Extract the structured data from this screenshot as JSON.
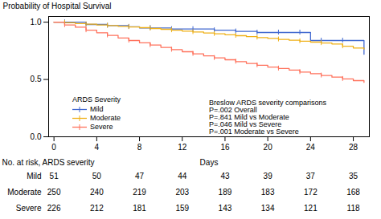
{
  "chart_data": {
    "type": "step",
    "ylabel": "Probability of Hospital Survival",
    "xlabel": "Days",
    "x": [
      0,
      1,
      2,
      3,
      4,
      5,
      6,
      7,
      8,
      9,
      10,
      11,
      12,
      13,
      14,
      15,
      16,
      17,
      18,
      19,
      20,
      21,
      22,
      23,
      24,
      25,
      26,
      27,
      28,
      29
    ],
    "series": [
      {
        "name": "Mild",
        "values": [
          1.0,
          1.0,
          1.0,
          0.98,
          0.98,
          0.97,
          0.97,
          0.96,
          0.95,
          0.95,
          0.95,
          0.94,
          0.94,
          0.94,
          0.94,
          0.93,
          0.93,
          0.92,
          0.92,
          0.91,
          0.91,
          0.91,
          0.91,
          0.91,
          0.84,
          0.84,
          0.84,
          0.84,
          0.84,
          0.72
        ]
      },
      {
        "name": "Moderate",
        "values": [
          1.0,
          0.995,
          0.988,
          0.982,
          0.975,
          0.97,
          0.964,
          0.958,
          0.952,
          0.945,
          0.938,
          0.93,
          0.922,
          0.914,
          0.906,
          0.898,
          0.89,
          0.882,
          0.874,
          0.866,
          0.858,
          0.85,
          0.842,
          0.834,
          0.826,
          0.818,
          0.81,
          0.79,
          0.775,
          0.765
        ]
      },
      {
        "name": "Severe",
        "values": [
          1.0,
          0.975,
          0.956,
          0.93,
          0.908,
          0.885,
          0.862,
          0.84,
          0.82,
          0.8,
          0.78,
          0.76,
          0.742,
          0.724,
          0.706,
          0.688,
          0.672,
          0.656,
          0.64,
          0.624,
          0.608,
          0.596,
          0.582,
          0.565,
          0.55,
          0.535,
          0.52,
          0.505,
          0.49,
          0.475
        ]
      }
    ],
    "marker": "tick",
    "censored_x": [
      1,
      3,
      5,
      7,
      9,
      11,
      13,
      15,
      17,
      19,
      21,
      23,
      25,
      27
    ],
    "xlim": [
      -0.5,
      29.5
    ],
    "ylim": [
      0.0,
      1.05
    ],
    "xticks": [
      0,
      4,
      8,
      12,
      16,
      20,
      24,
      28
    ],
    "yticks": [
      {
        "value": 0.0,
        "label": "0.0"
      },
      0.5,
      {
        "value": 1.0,
        "label": "1.0"
      }
    ],
    "tick_labels": "y",
    "grid": false,
    "legend": "lower left",
    "legend_title": "ARDS Severity",
    "annotation": "Breslow ARDS severity comparisons\nP=.002 Overall\nP=.841 Mild vs Moderate\nP=.046 Mild vs Severe\nP=.001 Moderate vs Severe",
    "risk_table": {
      "title": "No. at risk, ARDS severity",
      "days": [
        0,
        4,
        8,
        12,
        16,
        20,
        24,
        28
      ],
      "rows": [
        {
          "name": "Mild",
          "values": [
            51,
            50,
            47,
            44,
            43,
            39,
            37,
            35
          ]
        },
        {
          "name": "Moderate",
          "values": [
            250,
            240,
            219,
            203,
            189,
            183,
            172,
            168
          ]
        },
        {
          "name": "Severe",
          "values": [
            226,
            212,
            181,
            159,
            143,
            134,
            121,
            118
          ]
        }
      ]
    }
  }
}
